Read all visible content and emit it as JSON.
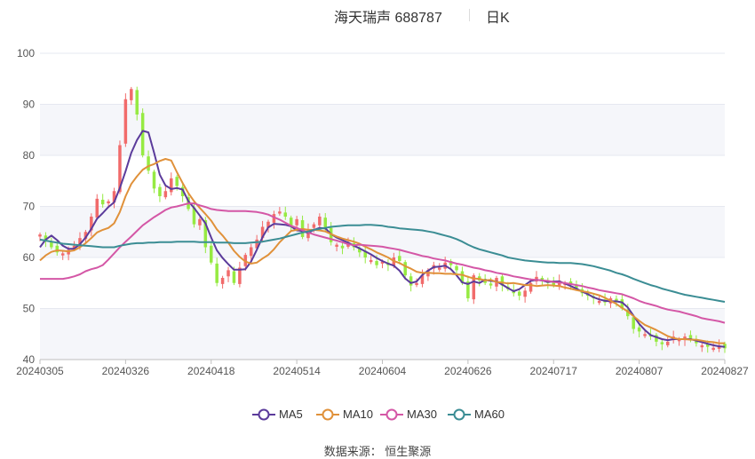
{
  "header": {
    "title": "海天瑞声 688787",
    "period": "日K"
  },
  "source_text": "数据来源：  恒生聚源",
  "colors": {
    "up": "#f16b6b",
    "down": "#96ea42",
    "MA5": "#5b3b9b",
    "MA10": "#e0913a",
    "MA30": "#d457a6",
    "MA60": "#3b8d94",
    "grid": "#e6e8f0",
    "band": "#f5f6fa"
  },
  "chart_data": {
    "type": "candlestick",
    "title": "海天瑞声 688787",
    "xlabel": "",
    "ylabel": "",
    "ylim": [
      40,
      100
    ],
    "yticks": [
      40,
      50,
      60,
      70,
      80,
      90,
      100
    ],
    "xtick_labels": [
      "20240305",
      "20240326",
      "20240418",
      "20240514",
      "20240604",
      "20240626",
      "20240717",
      "20240807",
      "20240827"
    ],
    "xtick_index": [
      0,
      15,
      30,
      45,
      60,
      75,
      90,
      105,
      120
    ],
    "legend": [
      "MA5",
      "MA10",
      "MA30",
      "MA60"
    ],
    "legend_position": "bottom",
    "grid": true,
    "ohlc_close": [
      64.5,
      63.2,
      62.0,
      61.0,
      60.8,
      61.5,
      62.3,
      63.8,
      65.0,
      68.0,
      71.5,
      70.4,
      71.0,
      73.0,
      82.0,
      91.0,
      93.0,
      88.0,
      80.0,
      77.0,
      73.5,
      72.0,
      73.0,
      75.5,
      74.0,
      72.0,
      69.5,
      66.5,
      67.5,
      62.0,
      59.0,
      55.0,
      56.0,
      57.5,
      55.0,
      58.0,
      60.5,
      62.0,
      63.5,
      66.0,
      67.0,
      68.5,
      69.0,
      68.0,
      66.0,
      67.5,
      64.0,
      65.5,
      66.5,
      68.0,
      65.5,
      63.0,
      62.5,
      61.8,
      63.0,
      62.0,
      61.0,
      60.0,
      59.5,
      58.5,
      59.2,
      58.5,
      60.0,
      59.3,
      56.5,
      54.5,
      55.0,
      56.5,
      57.5,
      58.5,
      58.0,
      59.0,
      58.5,
      57.5,
      55.0,
      52.0,
      56.5,
      55.5,
      55.0,
      54.5,
      56.0,
      54.5,
      53.8,
      53.0,
      52.5,
      53.5,
      55.0,
      56.2,
      55.5,
      55.0,
      54.5,
      55.5,
      55.0,
      54.8,
      54.0,
      53.0,
      52.5,
      52.0,
      51.5,
      51.2,
      52.0,
      51.5,
      50.0,
      48.5,
      46.0,
      45.5,
      45.0,
      44.5,
      43.5,
      43.0,
      43.5,
      44.5,
      44.0,
      44.5,
      43.8,
      43.2,
      42.8,
      42.5,
      42.3,
      42.8,
      42.2
    ],
    "series": [
      {
        "name": "MA5",
        "values": [
          62.0,
          63.5,
          64.3,
          63.4,
          62.3,
          61.7,
          61.7,
          62.6,
          63.9,
          65.6,
          67.6,
          68.7,
          69.9,
          70.8,
          73.6,
          76.9,
          80.5,
          83.0,
          84.8,
          84.5,
          80.5,
          76.2,
          74.1,
          73.4,
          73.6,
          73.3,
          71.0,
          69.7,
          68.2,
          66.7,
          63.9,
          61.4,
          59.9,
          58.7,
          57.6,
          57.6,
          57.7,
          59.2,
          61.5,
          64.0,
          65.9,
          66.6,
          66.5,
          66.4,
          66.1,
          65.3,
          65.2,
          64.8,
          65.4,
          65.8,
          65.7,
          64.6,
          63.9,
          63.4,
          62.9,
          62.3,
          61.8,
          61.2,
          60.6,
          59.9,
          59.3,
          58.8,
          58.4,
          57.4,
          55.9,
          55.0,
          55.3,
          56.6,
          57.4,
          58.1,
          58.2,
          58.4,
          57.7,
          56.5,
          55.1,
          54.8,
          55.3,
          55.0,
          55.6,
          55.4,
          55.3,
          54.7,
          54.0,
          53.4,
          53.8,
          54.6,
          55.4,
          55.6,
          55.5,
          55.2,
          55.3,
          55.3,
          54.9,
          54.4,
          53.9,
          53.3,
          52.8,
          52.2,
          51.8,
          51.5,
          51.4,
          51.4,
          51.2,
          50.2,
          48.6,
          47.0,
          45.8,
          44.8,
          44.4,
          44.0,
          43.8,
          44.0,
          44.0,
          44.0,
          44.0,
          43.7,
          43.4,
          43.1,
          42.8,
          42.6,
          42.5
        ]
      },
      {
        "name": "MA10",
        "values": [
          59.4,
          60.4,
          61.1,
          61.4,
          61.3,
          61.2,
          61.4,
          62.0,
          62.8,
          63.8,
          64.9,
          65.4,
          65.8,
          66.7,
          68.9,
          72.0,
          74.4,
          75.9,
          77.2,
          77.9,
          78.3,
          78.9,
          79.3,
          79.0,
          76.7,
          74.6,
          72.6,
          71.0,
          69.7,
          68.5,
          67.2,
          65.5,
          64.3,
          62.9,
          61.3,
          60.1,
          59.2,
          58.8,
          59.0,
          59.8,
          60.5,
          61.6,
          63.0,
          64.1,
          65.2,
          65.4,
          65.6,
          65.4,
          65.4,
          65.3,
          65.1,
          64.6,
          64.1,
          63.7,
          63.4,
          63.1,
          62.7,
          62.1,
          61.6,
          61.0,
          60.5,
          60.0,
          59.3,
          58.9,
          58.3,
          57.8,
          57.2,
          57.0,
          57.0,
          56.9,
          56.9,
          56.8,
          56.8,
          56.7,
          56.6,
          56.2,
          55.9,
          55.8,
          55.5,
          55.6,
          55.2,
          55.1,
          54.9,
          55.0,
          54.8,
          54.6,
          54.6,
          54.4,
          54.5,
          54.6,
          54.5,
          54.4,
          54.1,
          53.9,
          53.6,
          53.4,
          53.2,
          52.9,
          52.6,
          52.1,
          51.5,
          50.9,
          50.1,
          49.4,
          48.5,
          47.6,
          46.8,
          46.3,
          45.8,
          45.2,
          44.6,
          44.2,
          44.0,
          44.0,
          43.9,
          43.9,
          43.7,
          43.5,
          43.4,
          43.2,
          43.2
        ]
      },
      {
        "name": "MA30",
        "values": [
          55.8,
          55.8,
          55.8,
          55.8,
          55.8,
          56.0,
          56.3,
          56.7,
          57.3,
          57.7,
          58.0,
          58.5,
          59.6,
          60.8,
          62.0,
          63.1,
          64.1,
          65.2,
          66.3,
          67.1,
          67.9,
          68.6,
          69.3,
          69.8,
          70.0,
          70.3,
          70.6,
          70.6,
          70.2,
          69.9,
          69.5,
          69.3,
          69.2,
          69.1,
          69.1,
          69.1,
          69.1,
          69.0,
          68.9,
          68.7,
          68.4,
          67.9,
          67.4,
          66.8,
          66.2,
          65.8,
          65.3,
          64.9,
          64.5,
          64.2,
          63.9,
          63.6,
          63.3,
          63.0,
          62.6,
          62.4,
          62.5,
          62.4,
          62.3,
          62.2,
          62.1,
          61.9,
          61.7,
          61.5,
          61.2,
          60.9,
          60.6,
          60.3,
          60.1,
          59.8,
          59.6,
          59.4,
          59.1,
          58.8,
          58.6,
          58.3,
          58.0,
          57.8,
          57.5,
          57.3,
          57.0,
          56.8,
          56.6,
          56.3,
          56.1,
          55.9,
          55.7,
          55.6,
          55.5,
          55.4,
          55.2,
          55.1,
          55.0,
          54.8,
          54.6,
          54.4,
          54.1,
          53.9,
          53.6,
          53.4,
          53.2,
          53.0,
          52.8,
          52.4,
          52.0,
          51.5,
          51.1,
          50.8,
          50.5,
          50.1,
          49.8,
          49.6,
          49.4,
          49.1,
          48.8,
          48.5,
          48.1,
          47.9,
          47.7,
          47.5,
          47.2
        ]
      },
      {
        "name": "MA60",
        "values": [
          63.5,
          63.3,
          63.1,
          62.9,
          62.7,
          62.6,
          62.5,
          62.4,
          62.3,
          62.2,
          62.1,
          62.0,
          62.0,
          62.0,
          62.3,
          62.5,
          62.7,
          62.8,
          62.8,
          62.9,
          62.9,
          63.0,
          63.0,
          63.0,
          63.1,
          63.1,
          63.1,
          63.1,
          63.0,
          63.0,
          63.0,
          62.9,
          62.9,
          62.9,
          62.8,
          62.8,
          62.8,
          62.9,
          63.0,
          63.1,
          63.3,
          63.5,
          63.7,
          64.0,
          64.3,
          64.6,
          64.9,
          65.1,
          65.4,
          65.6,
          65.8,
          66.0,
          66.1,
          66.2,
          66.3,
          66.3,
          66.3,
          66.4,
          66.4,
          66.3,
          66.2,
          66.0,
          65.9,
          65.7,
          65.6,
          65.5,
          65.4,
          65.3,
          65.1,
          64.9,
          64.6,
          64.3,
          64.0,
          63.6,
          63.1,
          62.5,
          62.0,
          61.6,
          61.3,
          61.0,
          60.7,
          60.4,
          60.0,
          59.8,
          59.6,
          59.4,
          59.3,
          59.2,
          59.1,
          59.0,
          59.0,
          58.9,
          58.9,
          58.9,
          58.8,
          58.7,
          58.5,
          58.3,
          58.0,
          57.7,
          57.4,
          57.0,
          56.7,
          56.3,
          55.8,
          55.4,
          55.0,
          54.6,
          54.3,
          53.9,
          53.6,
          53.3,
          53.0,
          52.7,
          52.5,
          52.3,
          52.1,
          51.9,
          51.7,
          51.5,
          51.3
        ]
      }
    ]
  }
}
